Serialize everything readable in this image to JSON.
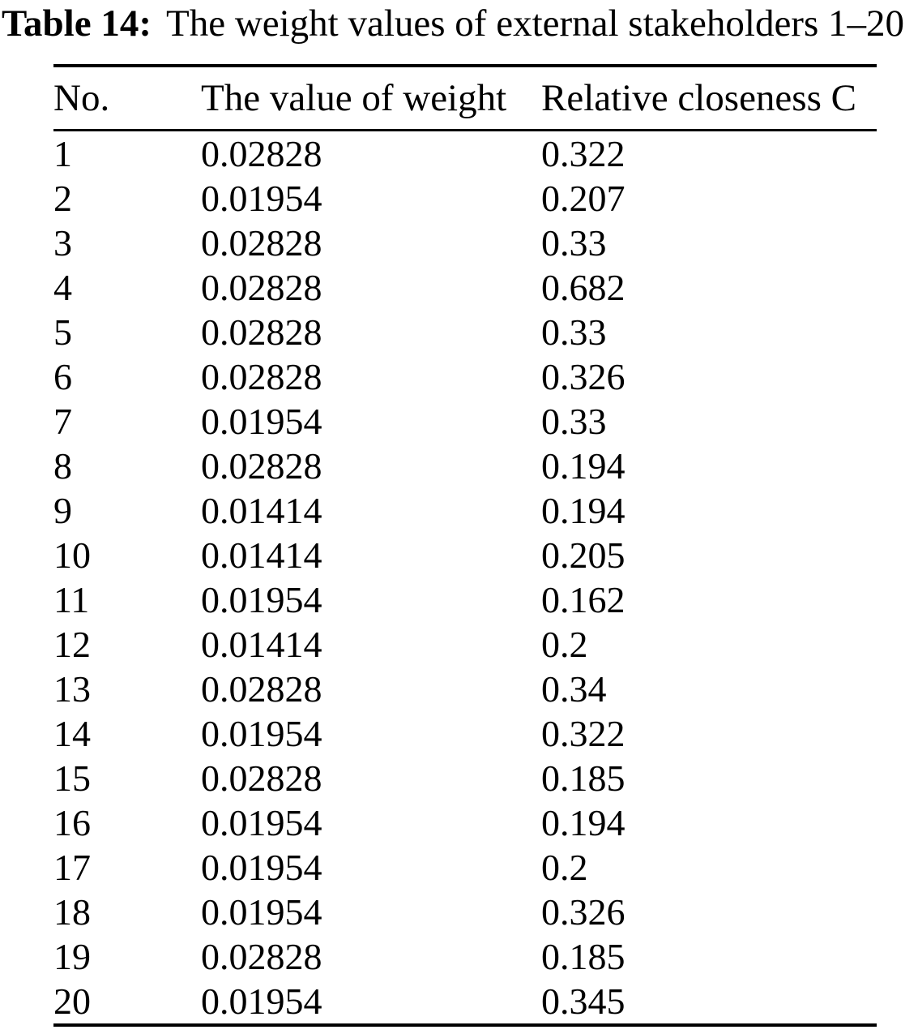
{
  "title": {
    "label": "Table 14:",
    "caption": "The weight values of external stakeholders 1–20"
  },
  "table": {
    "columns": [
      "No.",
      "The value of weight",
      "Relative closeness C"
    ],
    "rows": [
      [
        "1",
        "0.02828",
        "0.322"
      ],
      [
        "2",
        "0.01954",
        "0.207"
      ],
      [
        "3",
        "0.02828",
        "0.33"
      ],
      [
        "4",
        "0.02828",
        "0.682"
      ],
      [
        "5",
        "0.02828",
        "0.33"
      ],
      [
        "6",
        "0.02828",
        "0.326"
      ],
      [
        "7",
        "0.01954",
        "0.33"
      ],
      [
        "8",
        "0.02828",
        "0.194"
      ],
      [
        "9",
        "0.01414",
        "0.194"
      ],
      [
        "10",
        "0.01414",
        "0.205"
      ],
      [
        "11",
        "0.01954",
        "0.162"
      ],
      [
        "12",
        "0.01414",
        "0.2"
      ],
      [
        "13",
        "0.02828",
        "0.34"
      ],
      [
        "14",
        "0.01954",
        "0.322"
      ],
      [
        "15",
        "0.02828",
        "0.185"
      ],
      [
        "16",
        "0.01954",
        "0.194"
      ],
      [
        "17",
        "0.01954",
        "0.2"
      ],
      [
        "18",
        "0.01954",
        "0.326"
      ],
      [
        "19",
        "0.02828",
        "0.185"
      ],
      [
        "20",
        "0.01954",
        "0.345"
      ]
    ]
  },
  "colors": {
    "text": "#000000",
    "background": "#ffffff",
    "rule": "#000000"
  }
}
